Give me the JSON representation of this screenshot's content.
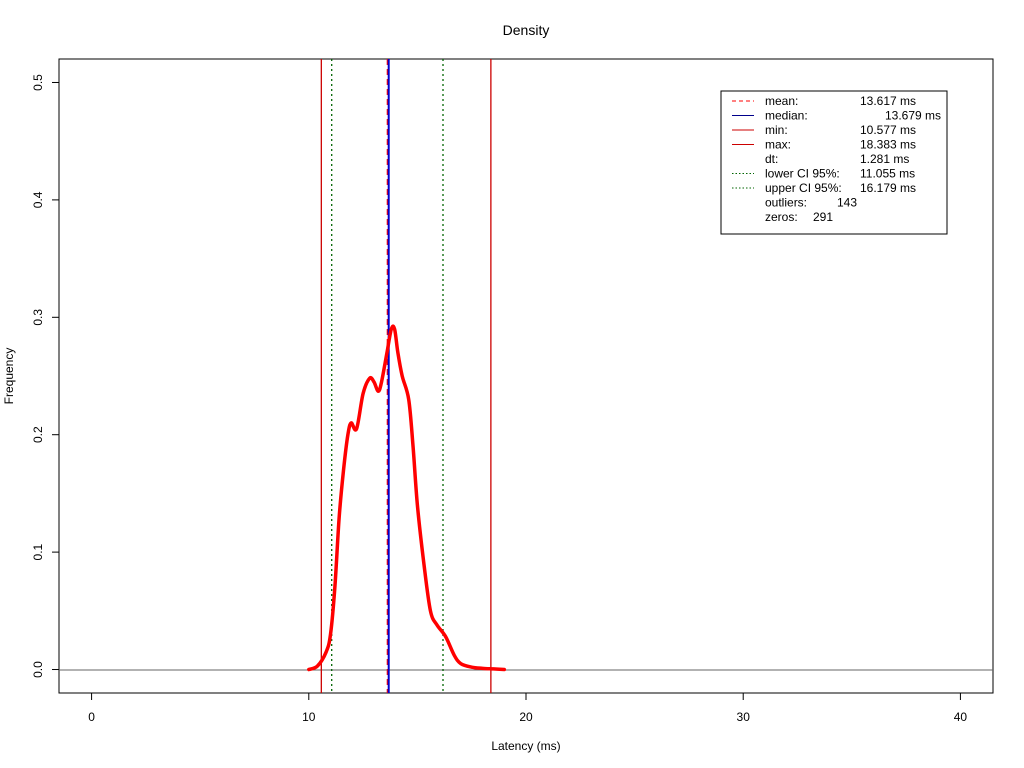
{
  "chart_data": {
    "type": "line",
    "title": "Density",
    "xlabel": "Latency (ms)",
    "ylabel": "Frequency",
    "xlim": [
      -1.5,
      41.5
    ],
    "ylim": [
      -0.02,
      0.52
    ],
    "x_ticks": [
      0,
      10,
      20,
      30,
      40
    ],
    "y_ticks": [
      0.0,
      0.1,
      0.2,
      0.3,
      0.4,
      0.5
    ],
    "x_tick_labels": [
      "0",
      "10",
      "20",
      "30",
      "40"
    ],
    "y_tick_labels": [
      "0.0",
      "0.1",
      "0.2",
      "0.3",
      "0.4",
      "0.5"
    ],
    "legend_placement": "top-right",
    "series": [
      {
        "color": "#ff0000",
        "x": [
          10.0,
          10.4,
          10.8,
          11.0,
          11.2,
          11.4,
          11.6,
          11.8,
          11.95,
          12.2,
          12.5,
          12.8,
          13.0,
          13.2,
          13.35,
          13.6,
          13.8,
          13.95,
          14.1,
          14.3,
          14.6,
          14.8,
          15.0,
          15.3,
          15.6,
          15.9,
          16.3,
          16.7,
          17.0,
          17.5,
          18.0,
          18.5,
          19.0
        ],
        "y": [
          0.0,
          0.003,
          0.015,
          0.03,
          0.07,
          0.13,
          0.17,
          0.2,
          0.21,
          0.205,
          0.235,
          0.248,
          0.245,
          0.237,
          0.245,
          0.27,
          0.29,
          0.29,
          0.27,
          0.25,
          0.23,
          0.19,
          0.14,
          0.09,
          0.05,
          0.038,
          0.028,
          0.012,
          0.005,
          0.002,
          0.001,
          0.0005,
          0.0
        ]
      }
    ],
    "reference_lines": [
      {
        "name": "mean",
        "x": 13.617,
        "color": "#ff0000",
        "style": "dashed"
      },
      {
        "name": "median",
        "x": 13.679,
        "color": "#0000cc",
        "style": "solid"
      },
      {
        "name": "min",
        "x": 10.577,
        "color": "#cc0000",
        "style": "solid"
      },
      {
        "name": "max",
        "x": 18.383,
        "color": "#cc0000",
        "style": "solid"
      },
      {
        "name": "lower CI 95%",
        "x": 11.055,
        "color": "#006400",
        "style": "dotted"
      },
      {
        "name": "upper CI 95%",
        "x": 16.179,
        "color": "#006400",
        "style": "dotted"
      }
    ],
    "legend": [
      {
        "label": "mean:",
        "value": "13.617 ms",
        "color": "#ff0000",
        "style": "dashed"
      },
      {
        "label": "median:",
        "value": "13.679 ms",
        "color": "#00008b",
        "style": "solid"
      },
      {
        "label": "min:",
        "value": "10.577 ms",
        "color": "#cc0000",
        "style": "solid"
      },
      {
        "label": "max:",
        "value": "18.383 ms",
        "color": "#cc0000",
        "style": "solid"
      },
      {
        "label": "dt:",
        "value": "1.281 ms",
        "color": "",
        "style": "none"
      },
      {
        "label": "lower CI 95%:",
        "value": "11.055 ms",
        "color": "#006400",
        "style": "dotted"
      },
      {
        "label": "upper CI 95%:",
        "value": "16.179 ms",
        "color": "#006400",
        "style": "dotted"
      },
      {
        "label": "outliers:",
        "value": "143",
        "color": "",
        "style": "none"
      },
      {
        "label": "zeros:",
        "value": "291",
        "color": "",
        "style": "none"
      }
    ]
  }
}
